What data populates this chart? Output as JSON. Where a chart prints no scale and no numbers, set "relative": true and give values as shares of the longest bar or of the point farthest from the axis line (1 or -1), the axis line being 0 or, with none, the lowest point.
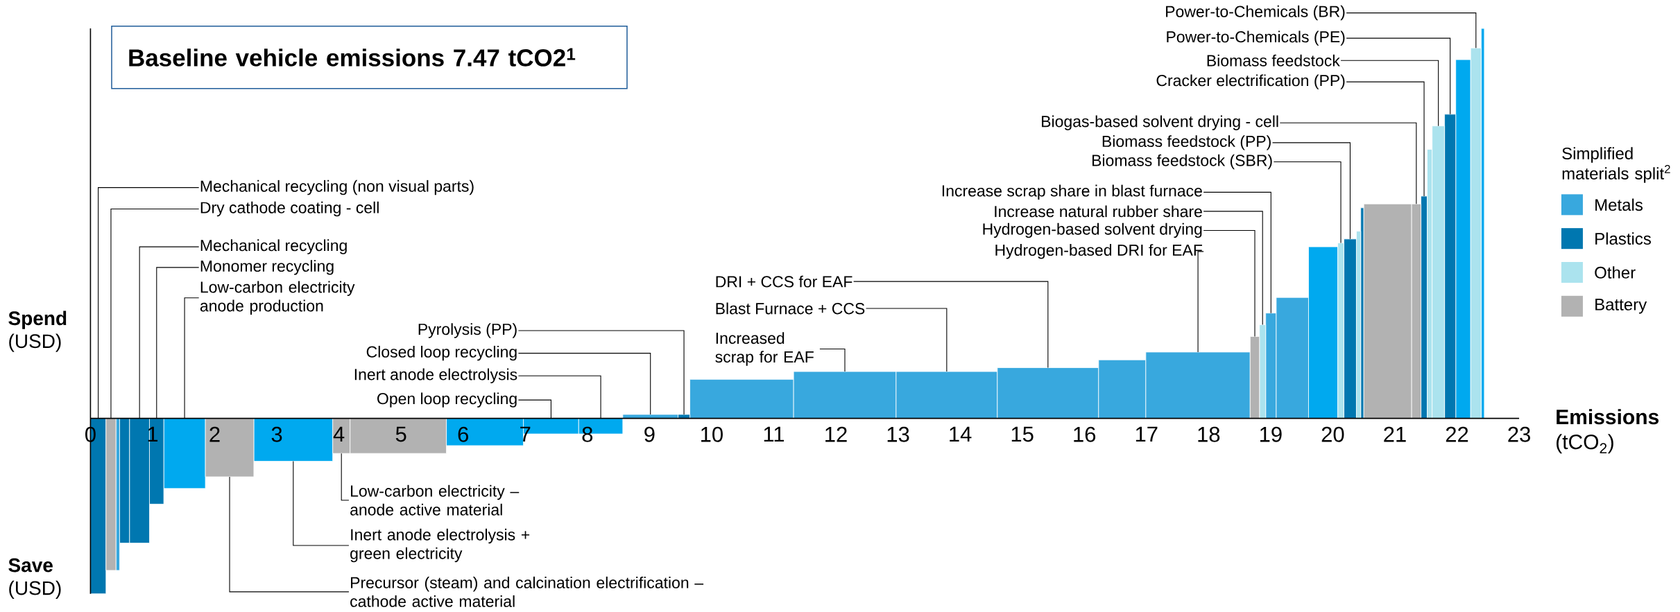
{
  "chart_data": {
    "type": "bar",
    "relative": true,
    "title": "Baseline vehicle emissions 7.47 tCO2$^{1}$",
    "xlabel": "**Emissions** (tCO$_{2}$)",
    "ylabel": "**Spend** (USD)",
    "legend_title": "Simplified materials split$^{2}$",
    "legend": "right",
    "xlim": [
      0,
      23
    ],
    "xticks": [
      0,
      1,
      2,
      3,
      4,
      5,
      6,
      7,
      8,
      9,
      10,
      11,
      12,
      13,
      14,
      15,
      16,
      17,
      18,
      19,
      20,
      21,
      22,
      23
    ],
    "x": [
      0.125,
      0.33,
      0.44,
      0.55,
      0.79,
      1.065,
      1.515,
      2.24,
      3.265,
      4.04,
      4.955,
      6.35,
      7.415,
      8.215,
      9.015,
      9.555,
      10.485,
      12.145,
      13.785,
      15.415,
      16.61,
      17.83,
      18.745,
      18.87,
      19.005,
      19.35,
      19.845,
      20.13,
      20.28,
      20.415,
      20.475,
      20.885,
      21.345,
      21.47,
      21.56,
      21.7,
      21.89,
      22.1,
      22.305,
      22.415
    ],
    "series": [
      {
        "name": "Metals",
        "color": "#38a8de",
        "values": [
          null,
          null,
          -0.39,
          null,
          null,
          null,
          -0.18,
          null,
          -0.11,
          null,
          null,
          -0.07,
          -0.04,
          -0.04,
          0.01,
          null,
          0.1,
          0.12,
          0.12,
          0.13,
          0.15,
          0.17,
          null,
          null,
          0.27,
          0.31,
          0.44,
          null,
          null,
          null,
          null,
          null,
          null,
          null,
          null,
          null,
          null,
          0.92,
          null,
          1
        ],
        "colors": [
          null,
          null,
          "#38a8de",
          null,
          null,
          null,
          "#00a9ef",
          null,
          "#00a9ef",
          null,
          null,
          "#00a9ef",
          "#00a9ef",
          "#00a9ef",
          "#38a8de",
          null,
          "#38a8de",
          "#38a8de",
          "#38a8de",
          "#38a8de",
          "#38a8de",
          "#38a8de",
          null,
          null,
          "#38a8de",
          "#38a8de",
          "#00a9ef",
          null,
          null,
          null,
          null,
          null,
          null,
          null,
          null,
          null,
          null,
          "#00a9ef",
          null,
          "#00a9ef"
        ]
      },
      {
        "name": "Plastics",
        "color": "#0077b0",
        "values": [
          -0.45,
          null,
          null,
          -0.32,
          -0.32,
          -0.22,
          null,
          null,
          null,
          null,
          null,
          null,
          null,
          null,
          null,
          0.01,
          null,
          null,
          null,
          null,
          null,
          null,
          null,
          null,
          null,
          null,
          null,
          null,
          0.46,
          null,
          0.54,
          null,
          null,
          0.57,
          null,
          null,
          0.78,
          null,
          null,
          null
        ]
      },
      {
        "name": "Other",
        "color": "#abe3ee",
        "values": [
          null,
          null,
          null,
          null,
          null,
          null,
          null,
          null,
          null,
          null,
          null,
          null,
          null,
          null,
          null,
          null,
          null,
          null,
          null,
          null,
          null,
          null,
          null,
          0.24,
          null,
          null,
          null,
          0.45,
          null,
          0.48,
          null,
          null,
          null,
          null,
          0.69,
          0.75,
          null,
          null,
          0.95,
          null
        ]
      },
      {
        "name": "Battery",
        "color": "#b2b2b2",
        "values": [
          null,
          -0.39,
          null,
          null,
          null,
          null,
          null,
          -0.15,
          null,
          -0.09,
          -0.09,
          null,
          null,
          null,
          null,
          null,
          null,
          null,
          null,
          null,
          null,
          null,
          0.21,
          null,
          null,
          null,
          null,
          null,
          null,
          null,
          null,
          0.55,
          0.55,
          null,
          null,
          null,
          null,
          null,
          null,
          null
        ]
      }
    ],
    "annotations": [
      {
        "text": "Mechanical recycling (non visual parts)",
        "x": 0.125,
        "y": 0
      },
      {
        "text": "Dry cathode coating - cell",
        "x": 0.33,
        "y": 0
      },
      {
        "text": "Mechanical recycling",
        "x": 0.79,
        "y": 0
      },
      {
        "text": "Monomer recycling",
        "x": 1.065,
        "y": 0
      },
      {
        "text": "Low-carbon electricity anode production",
        "x": 1.515,
        "y": 0
      },
      {
        "text": "Pyrolysis (PP)",
        "x": 9.555,
        "y": 0.01
      },
      {
        "text": "Closed loop recycling",
        "x": 9.015,
        "y": 0.01
      },
      {
        "text": "Inert anode electrolysis",
        "x": 8.215,
        "y": 0
      },
      {
        "text": "Open loop recycling",
        "x": 7.415,
        "y": -0.04
      },
      {
        "text": "Increased scrap for EAF",
        "x": 12.145,
        "y": 0.12
      },
      {
        "text": "Blast Furnace + CCS",
        "x": 13.785,
        "y": 0.12
      },
      {
        "text": "DRI + CCS for EAF",
        "x": 15.415,
        "y": 0.13
      },
      {
        "text": "Hydrogen-based DRI for EAF",
        "x": 17.83,
        "y": 0.17
      },
      {
        "text": "Hydrogen-based solvent drying",
        "x": 18.745,
        "y": 0.21
      },
      {
        "text": "Increase natural rubber share",
        "x": 18.87,
        "y": 0.24
      },
      {
        "text": "Increase scrap share in blast furnace",
        "x": 19.005,
        "y": 0.27
      },
      {
        "text": "Biomass feedstock (SBR)",
        "x": 20.13,
        "y": 0.45
      },
      {
        "text": "Biomass feedstock (PP)",
        "x": 20.28,
        "y": 0.46
      },
      {
        "text": "Biogas-based solvent drying - cell",
        "x": 21.345,
        "y": 0.55
      },
      {
        "text": "Cracker electrification (PP)",
        "x": 21.47,
        "y": 0.57
      },
      {
        "text": "Biomass feedstock",
        "x": 21.7,
        "y": 0.75
      },
      {
        "text": "Power-to-Chemicals (PE)",
        "x": 21.89,
        "y": 0.78
      },
      {
        "text": "Power-to-Chemicals (BR)",
        "x": 22.305,
        "y": 0.95
      },
      {
        "text": "Low-carbon electricity – anode active material",
        "x": 4.04,
        "y": -0.09
      },
      {
        "text": "Inert anode electrolysis + green electricity",
        "x": 3.265,
        "y": -0.11
      },
      {
        "text": "Precursor (steam) and calcination electrification – cathode active material",
        "x": 2.24,
        "y": -0.15
      },
      "**Save** (USD)"
    ]
  }
}
